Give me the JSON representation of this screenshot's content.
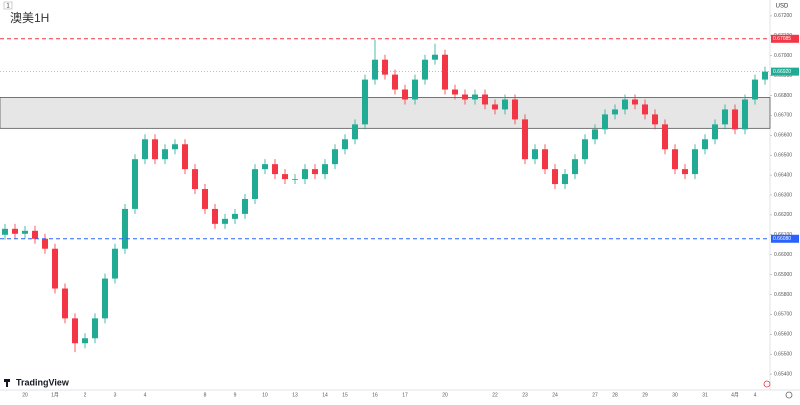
{
  "chart_data": {
    "type": "candlestick",
    "title": "澳美1H",
    "symbol_badge": "1",
    "currency": "USD",
    "brand": "TradingView",
    "categories": [
      null,
      null,
      "20",
      null,
      null,
      "1月",
      null,
      null,
      "2",
      null,
      null,
      "3",
      null,
      null,
      "4",
      null,
      null,
      null,
      null,
      null,
      "8",
      null,
      null,
      "9",
      null,
      null,
      "10",
      null,
      null,
      "13",
      null,
      null,
      "14",
      null,
      "15",
      null,
      null,
      "16",
      null,
      null,
      "17",
      null,
      null,
      null,
      "20",
      null,
      null,
      null,
      null,
      "22",
      null,
      null,
      "23",
      null,
      null,
      "24",
      null,
      null,
      null,
      "27",
      null,
      "28",
      null,
      null,
      "29",
      null,
      null,
      "30",
      null,
      null,
      "31",
      null,
      null,
      "4月",
      null,
      "4",
      null
    ],
    "open": [
      0.661,
      0.6613,
      0.66105,
      0.6612,
      0.6608,
      0.6603,
      0.6583,
      0.6568,
      0.65555,
      0.6558,
      0.6568,
      0.6588,
      0.6603,
      0.6623,
      0.6648,
      0.6658,
      0.6648,
      0.6653,
      0.66555,
      0.6643,
      0.6633,
      0.6623,
      0.66155,
      0.6618,
      0.66205,
      0.6628,
      0.6643,
      0.66455,
      0.66405,
      0.6638,
      0.6638,
      0.6643,
      0.66405,
      0.66455,
      0.6653,
      0.6658,
      0.66655,
      0.6688,
      0.6698,
      0.66905,
      0.6683,
      0.6678,
      0.6688,
      0.6698,
      0.67005,
      0.6683,
      0.66805,
      0.6678,
      0.66805,
      0.66755,
      0.6673,
      0.6678,
      0.6668,
      0.6648,
      0.6653,
      0.6643,
      0.66355,
      0.66405,
      0.6648,
      0.6658,
      0.6663,
      0.66705,
      0.6673,
      0.6678,
      0.66755,
      0.66705,
      0.66655,
      0.6653,
      0.6643,
      0.66405,
      0.6653,
      0.6658,
      0.66655,
      0.6673,
      0.6663,
      0.6678,
      0.6688
    ],
    "high": [
      0.66155,
      0.66155,
      0.66145,
      0.66145,
      0.66105,
      0.66055,
      0.65855,
      0.65705,
      0.65605,
      0.65705,
      0.65905,
      0.66055,
      0.66255,
      0.66505,
      0.66605,
      0.66605,
      0.66555,
      0.6658,
      0.6658,
      0.66455,
      0.66355,
      0.66255,
      0.66205,
      0.6623,
      0.66305,
      0.66455,
      0.6648,
      0.6648,
      0.6643,
      0.66405,
      0.66455,
      0.66455,
      0.6648,
      0.66555,
      0.66605,
      0.6668,
      0.66905,
      0.6708,
      0.67005,
      0.6693,
      0.66855,
      0.66905,
      0.67005,
      0.6706,
      0.6703,
      0.66855,
      0.6683,
      0.6683,
      0.6683,
      0.6678,
      0.66805,
      0.66805,
      0.66705,
      0.66555,
      0.66555,
      0.66455,
      0.6643,
      0.66505,
      0.66605,
      0.66655,
      0.6673,
      0.66755,
      0.66805,
      0.66805,
      0.6678,
      0.6673,
      0.6668,
      0.66555,
      0.66455,
      0.66555,
      0.66605,
      0.6668,
      0.66755,
      0.66755,
      0.66805,
      0.66905,
      0.66945
    ],
    "low": [
      0.66075,
      0.6608,
      0.6608,
      0.66055,
      0.66005,
      0.65805,
      0.65655,
      0.6551,
      0.6553,
      0.65555,
      0.65655,
      0.65855,
      0.66005,
      0.66205,
      0.66455,
      0.66455,
      0.66455,
      0.66505,
      0.66405,
      0.66305,
      0.66205,
      0.6613,
      0.6613,
      0.66155,
      0.6618,
      0.66255,
      0.66405,
      0.6638,
      0.66355,
      0.66355,
      0.66355,
      0.6638,
      0.6638,
      0.6643,
      0.66505,
      0.66555,
      0.6663,
      0.66855,
      0.6688,
      0.66805,
      0.66755,
      0.66755,
      0.66855,
      0.66955,
      0.66805,
      0.6678,
      0.66755,
      0.66755,
      0.6673,
      0.66705,
      0.66705,
      0.66655,
      0.66455,
      0.66455,
      0.66405,
      0.6633,
      0.6633,
      0.6638,
      0.66455,
      0.66555,
      0.66605,
      0.6668,
      0.66705,
      0.6673,
      0.6668,
      0.6663,
      0.66505,
      0.66405,
      0.6638,
      0.6638,
      0.66505,
      0.66555,
      0.6663,
      0.66605,
      0.66605,
      0.66755,
      0.66855
    ],
    "close": [
      0.6613,
      0.66105,
      0.6612,
      0.6608,
      0.6603,
      0.6583,
      0.6568,
      0.65555,
      0.6558,
      0.6568,
      0.6588,
      0.6603,
      0.6623,
      0.6648,
      0.6658,
      0.6648,
      0.6653,
      0.66555,
      0.6643,
      0.6633,
      0.6623,
      0.66155,
      0.6618,
      0.66205,
      0.6628,
      0.6643,
      0.66455,
      0.66405,
      0.6638,
      0.6638,
      0.6643,
      0.66405,
      0.66455,
      0.6653,
      0.6658,
      0.66655,
      0.6688,
      0.6698,
      0.66905,
      0.6683,
      0.6678,
      0.6688,
      0.6698,
      0.67005,
      0.6683,
      0.66805,
      0.6678,
      0.66805,
      0.66755,
      0.6673,
      0.6678,
      0.6668,
      0.6648,
      0.6653,
      0.6643,
      0.66355,
      0.66405,
      0.6648,
      0.6658,
      0.6663,
      0.66705,
      0.6673,
      0.6678,
      0.66755,
      0.66705,
      0.66655,
      0.6653,
      0.6643,
      0.66405,
      0.6653,
      0.6658,
      0.66655,
      0.6673,
      0.6663,
      0.6678,
      0.6688,
      0.6692
    ],
    "up_color": "#22ab94",
    "down_color": "#f23645",
    "ylim": [
      0.6533,
      0.6728
    ],
    "yticks": [
      {
        "value": 0.672,
        "label": "0.67200"
      },
      {
        "value": 0.671,
        "label": "0.67100"
      },
      {
        "value": 0.67,
        "label": "0.67000"
      },
      {
        "value": 0.669,
        "label": "0.66900"
      },
      {
        "value": 0.668,
        "label": "0.66800"
      },
      {
        "value": 0.667,
        "label": "0.66700"
      },
      {
        "value": 0.666,
        "label": "0.66600"
      },
      {
        "value": 0.665,
        "label": "0.66500"
      },
      {
        "value": 0.664,
        "label": "0.66400"
      },
      {
        "value": 0.663,
        "label": "0.66300"
      },
      {
        "value": 0.662,
        "label": "0.66200"
      },
      {
        "value": 0.661,
        "label": "0.66100"
      },
      {
        "value": 0.66,
        "label": "0.66000"
      },
      {
        "value": 0.659,
        "label": "0.65900"
      },
      {
        "value": 0.658,
        "label": "0.65800"
      },
      {
        "value": 0.657,
        "label": "0.65700"
      },
      {
        "value": 0.656,
        "label": "0.65600"
      },
      {
        "value": 0.655,
        "label": "0.65500"
      },
      {
        "value": 0.654,
        "label": "0.65400"
      }
    ],
    "levels": [
      {
        "value": 0.67085,
        "label": "0.67085",
        "color": "#f23645"
      },
      {
        "value": 0.6608,
        "label": "0.66080",
        "color": "#2962ff"
      }
    ],
    "zone": {
      "from": 0.66635,
      "to": 0.6679
    },
    "last_price": {
      "value": 0.6692,
      "label": "0.66920"
    }
  }
}
